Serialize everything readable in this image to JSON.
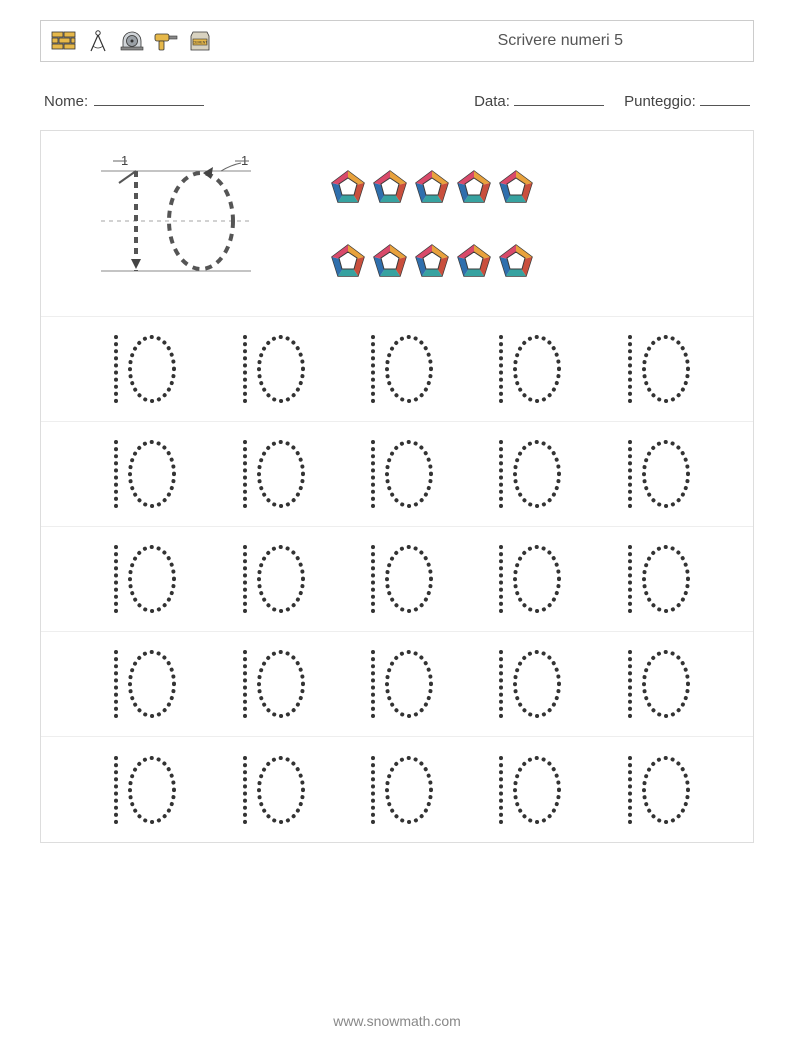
{
  "header": {
    "title": "Scrivere numeri 5",
    "icons": [
      "bricks",
      "compass",
      "sawblade",
      "drill",
      "cement-bag"
    ]
  },
  "info": {
    "name_label": "Nome:",
    "date_label": "Data:",
    "score_label": "Punteggio:",
    "name_blank_width": 110,
    "date_blank_width": 90,
    "score_blank_width": 50
  },
  "worksheet": {
    "number_to_trace": "10",
    "pentagon_rows": [
      5,
      5
    ],
    "trace_rows": 5,
    "trace_cols": 5,
    "trace_color": "#333333",
    "row_border_color": "#eeeeee",
    "pentagon_colors": {
      "outer_top": "#e8a23d",
      "outer_right": "#c94f3d",
      "outer_bottom_right": "#37a2a0",
      "outer_bottom_left": "#2f6fad",
      "outer_left": "#d94a6a",
      "inner": "#ffffff",
      "stroke": "#3a3a3a"
    },
    "guide": {
      "baseline_color": "#888888",
      "dash_color": "#666666",
      "arrow_color": "#444444",
      "stroke_labels": [
        "1",
        "1"
      ]
    }
  },
  "footer": {
    "url": "www.snowmath.com"
  },
  "colors": {
    "page_bg": "#ffffff",
    "border": "#cccccc",
    "text": "#333333",
    "muted": "#888888"
  }
}
